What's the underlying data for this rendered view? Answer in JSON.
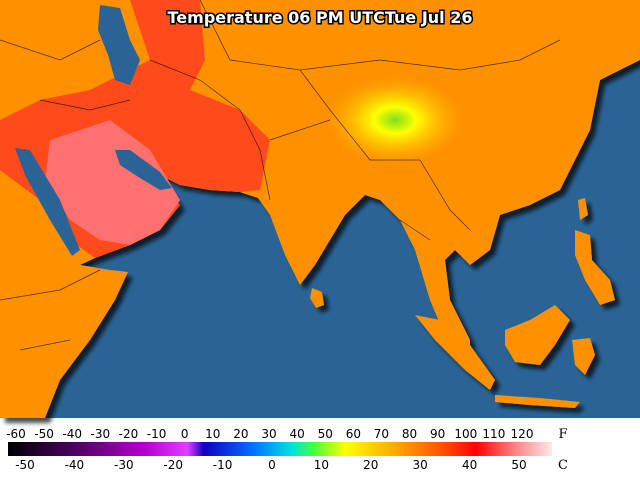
{
  "title": "Temperature 06 PM UTCTue Jul 26",
  "legend": {
    "fahrenheit": [
      -60,
      -50,
      -40,
      -30,
      -20,
      -10,
      0,
      10,
      20,
      30,
      40,
      50,
      60,
      70,
      80,
      90,
      100,
      110,
      120
    ],
    "fahrenheit_unit": "F",
    "celsius": [
      -50,
      -40,
      -30,
      -20,
      -10,
      0,
      10,
      20,
      30,
      40,
      50
    ],
    "celsius_unit": "C"
  }
}
